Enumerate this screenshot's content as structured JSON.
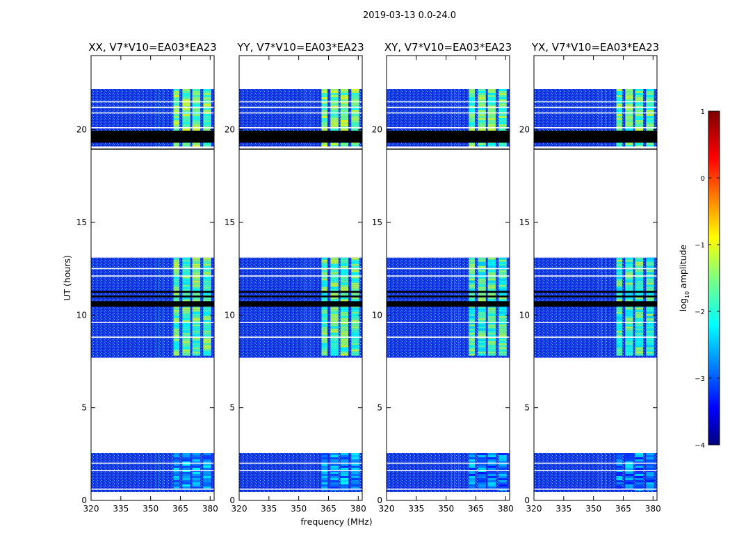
{
  "chart_data": {
    "type": "heatmap",
    "suptitle": "2019-03-13 0.0-24.0",
    "xlabel": "frequency (MHz)",
    "ylabel": "UT (hours)",
    "xlim": [
      320,
      382
    ],
    "ylim": [
      0,
      24
    ],
    "xticks": [
      320,
      335,
      350,
      365,
      380
    ],
    "yticks": [
      0,
      5,
      10,
      15,
      20
    ],
    "panels": [
      {
        "title": "XX, V7*V10=EA03*EA23",
        "pol": "XX"
      },
      {
        "title": "YY, V7*V10=EA03*EA23",
        "pol": "YY"
      },
      {
        "title": "XY, V7*V10=EA03*EA23",
        "pol": "XY"
      },
      {
        "title": "YX, V7*V10=EA03*EA23",
        "pol": "YX"
      }
    ],
    "data_blocks_ut": [
      [
        0.45,
        2.55
      ],
      [
        7.7,
        13.1
      ],
      [
        19.0,
        22.2
      ]
    ],
    "flagged_ut": [
      [
        19.3,
        19.95
      ],
      [
        18.92,
        19.08
      ],
      [
        10.45,
        10.75
      ],
      [
        10.95,
        11.05
      ],
      [
        11.2,
        11.3
      ]
    ],
    "white_gap_lines_ut": [
      0.6,
      1.6,
      2.0,
      8.8,
      9.6,
      12.1,
      12.5,
      20.1,
      20.9,
      21.2,
      21.5
    ],
    "strong_emission_mhz": [
      [
        361.5,
        364.5
      ],
      [
        366,
        370
      ],
      [
        371,
        375
      ],
      [
        376.5,
        380.5
      ]
    ],
    "weak_lines_mhz": [
      352.5,
      354,
      356
    ],
    "colorbar": {
      "label": "log10 amplitude",
      "label_main": "log",
      "label_sub": "10",
      "label_rest": " amplitude",
      "range": [
        -4,
        1
      ],
      "ticks": [
        "1",
        "0",
        "−1",
        "−2",
        "−3",
        "−4"
      ],
      "colormap": "jet"
    }
  }
}
